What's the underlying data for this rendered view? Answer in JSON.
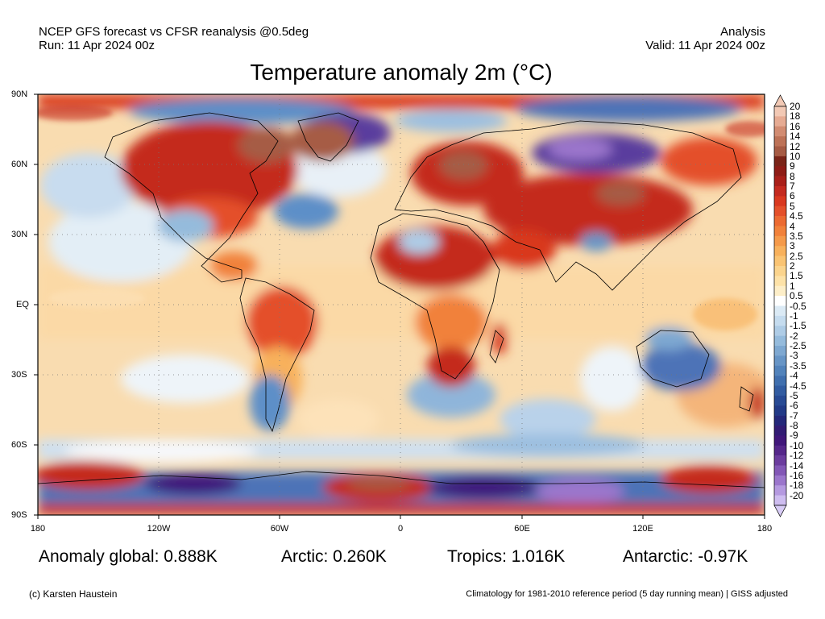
{
  "header": {
    "left_line1": "NCEP GFS forecast vs CFSR reanalysis @0.5deg",
    "left_line2": "Run: 11 Apr 2024 00z",
    "right_line1": "Analysis",
    "right_line2": "Valid: 11 Apr 2024 00z"
  },
  "title": "Temperature anomaly 2m (°C)",
  "lat_labels": [
    "90N",
    "60N",
    "30N",
    "EQ",
    "30S",
    "60S",
    "90S"
  ],
  "lon_labels": [
    "180",
    "120W",
    "60W",
    "0",
    "60E",
    "120E",
    "180"
  ],
  "colorbar": {
    "labels": [
      "20",
      "18",
      "16",
      "14",
      "12",
      "10",
      "9",
      "8",
      "7",
      "6",
      "5",
      "4.5",
      "4",
      "3.5",
      "3",
      "2.5",
      "2",
      "1.5",
      "1",
      "0.5",
      "-0.5",
      "-1",
      "-1.5",
      "-2",
      "-2.5",
      "-3",
      "-3.5",
      "-4",
      "-4.5",
      "-5",
      "-6",
      "-7",
      "-8",
      "-9",
      "-10",
      "-12",
      "-14",
      "-16",
      "-18",
      "-20"
    ],
    "colors": [
      "#f2c9b5",
      "#e6ab93",
      "#d28c72",
      "#bd7257",
      "#a65b44",
      "#7a2418",
      "#8e1c16",
      "#a91f19",
      "#c42a1f",
      "#d9381f",
      "#e4502a",
      "#ec6a31",
      "#f1813a",
      "#f59a4a",
      "#f8b15c",
      "#fac473",
      "#fbd48d",
      "#fde2a8",
      "#fdeec8",
      "#ffffff",
      "#dbeaf5",
      "#c5dcef",
      "#aeccE6",
      "#95bbdc",
      "#7ea8d1",
      "#6795c6",
      "#5283bb",
      "#406fae",
      "#325ca1",
      "#284a94",
      "#223a87",
      "#24287a",
      "#321c74",
      "#40177a",
      "#55278a",
      "#6b3c9e",
      "#8257b6",
      "#9b76cc",
      "#b59ae0",
      "#cebdf0"
    ],
    "top_arrow_color": "#f2c9b5",
    "bottom_arrow_color": "#d8ccf6"
  },
  "stats": {
    "global": "Anomaly global: 0.888K",
    "arctic": "Arctic: 0.260K",
    "tropics": "Tropics: 1.016K",
    "antarctic": "Antarctic: -0.97K"
  },
  "footer": {
    "left": "(c) Karsten Haustein",
    "right": "Climatology for 1981-2010 reference period (5 day running mean) | GISS adjusted"
  }
}
